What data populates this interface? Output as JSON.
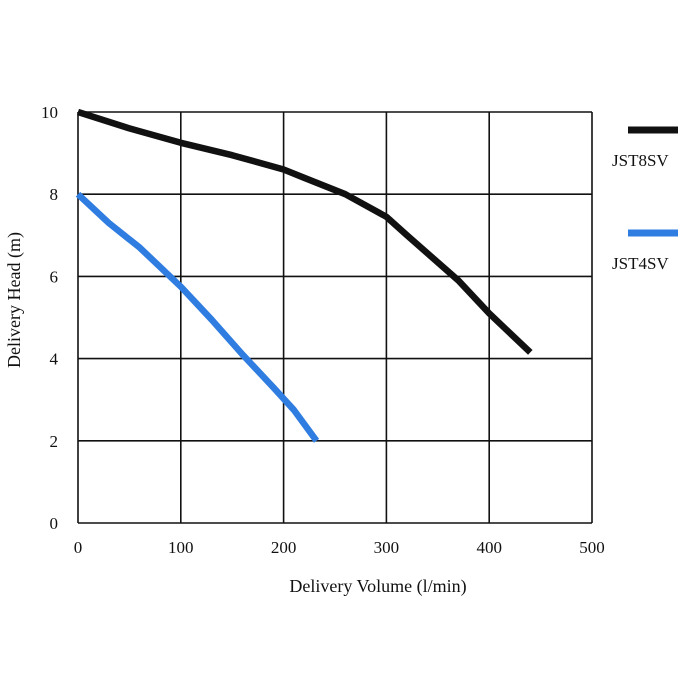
{
  "chart_data": {
    "type": "line",
    "title": "",
    "xlabel": "Delivery Volume (l/min)",
    "ylabel": "Delivery Head (m)",
    "xlim": [
      0,
      500
    ],
    "ylim": [
      0,
      10
    ],
    "x_ticks": [
      0,
      100,
      200,
      300,
      400,
      500
    ],
    "y_ticks": [
      0,
      2,
      4,
      6,
      8,
      10
    ],
    "grid": true,
    "legend_position": "right",
    "series": [
      {
        "name": "JST8SV",
        "color": "#111111",
        "points": [
          [
            0,
            10
          ],
          [
            50,
            9.6
          ],
          [
            100,
            9.25
          ],
          [
            150,
            8.95
          ],
          [
            200,
            8.6
          ],
          [
            220,
            8.4
          ],
          [
            260,
            8.0
          ],
          [
            300,
            7.45
          ],
          [
            320,
            7.0
          ],
          [
            370,
            5.9
          ],
          [
            400,
            5.1
          ],
          [
            440,
            4.15
          ]
        ]
      },
      {
        "name": "JST4SV",
        "color": "#2f7de1",
        "points": [
          [
            0,
            8
          ],
          [
            30,
            7.3
          ],
          [
            60,
            6.7
          ],
          [
            100,
            5.75
          ],
          [
            130,
            4.95
          ],
          [
            160,
            4.1
          ],
          [
            190,
            3.3
          ],
          [
            210,
            2.75
          ],
          [
            232,
            2.0
          ]
        ]
      }
    ]
  }
}
